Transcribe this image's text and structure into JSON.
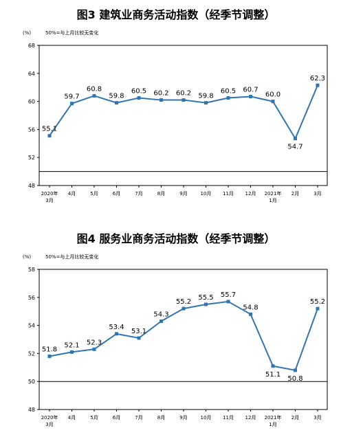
{
  "chart_data": [
    {
      "type": "line",
      "title": "图3  建筑业商务活动指数（经季节调整）",
      "unit_label": "(%)",
      "note": "50%=与上月比较无变化",
      "categories": [
        [
          "2020年",
          "3月"
        ],
        [
          "4月"
        ],
        [
          "5月"
        ],
        [
          "6月"
        ],
        [
          "7月"
        ],
        [
          "8月"
        ],
        [
          "9月"
        ],
        [
          "10月"
        ],
        [
          "11月"
        ],
        [
          "12月"
        ],
        [
          "2021年",
          "1月"
        ],
        [
          "2月"
        ],
        [
          "3月"
        ]
      ],
      "values": [
        55.1,
        59.7,
        60.8,
        59.8,
        60.5,
        60.2,
        60.2,
        59.8,
        60.5,
        60.7,
        60.0,
        54.7,
        62.3
      ],
      "value_labels": [
        "55.1",
        "59.7",
        "60.8",
        "59.8",
        "60.5",
        "60.2",
        "60.2",
        "59.8",
        "60.5",
        "60.7",
        "60.0",
        "54.7",
        "62.3"
      ],
      "label_position": [
        "above",
        "above",
        "above",
        "above",
        "above",
        "above",
        "above",
        "above",
        "above",
        "above",
        "above",
        "below",
        "above"
      ],
      "yticks": [
        48,
        52,
        56,
        60,
        64,
        68
      ],
      "ylim": [
        48,
        68
      ],
      "reference_line": 50,
      "color": "#2e75b6"
    },
    {
      "type": "line",
      "title": "图4  服务业商务活动指数（经季节调整）",
      "unit_label": "(%)",
      "note": "50%=与上月比较无变化",
      "categories": [
        [
          "2020年",
          "3月"
        ],
        [
          "4月"
        ],
        [
          "5月"
        ],
        [
          "6月"
        ],
        [
          "7月"
        ],
        [
          "8月"
        ],
        [
          "9月"
        ],
        [
          "10月"
        ],
        [
          "11月"
        ],
        [
          "12月"
        ],
        [
          "2021年",
          "1月"
        ],
        [
          "2月"
        ],
        [
          "3月"
        ]
      ],
      "values": [
        51.8,
        52.1,
        52.3,
        53.4,
        53.1,
        54.3,
        55.2,
        55.5,
        55.7,
        54.8,
        51.1,
        50.8,
        55.2
      ],
      "value_labels": [
        "51.8",
        "52.1",
        "52.3",
        "53.4",
        "53.1",
        "54.3",
        "55.2",
        "55.5",
        "55.7",
        "54.8",
        "51.1",
        "50.8",
        "55.2"
      ],
      "label_position": [
        "above",
        "above",
        "above",
        "above",
        "above",
        "above",
        "above",
        "above",
        "above",
        "above",
        "below",
        "below",
        "above"
      ],
      "yticks": [
        48,
        50,
        52,
        54,
        56,
        58
      ],
      "ylim": [
        48,
        58
      ],
      "reference_line": 50,
      "color": "#2e75b6"
    }
  ]
}
